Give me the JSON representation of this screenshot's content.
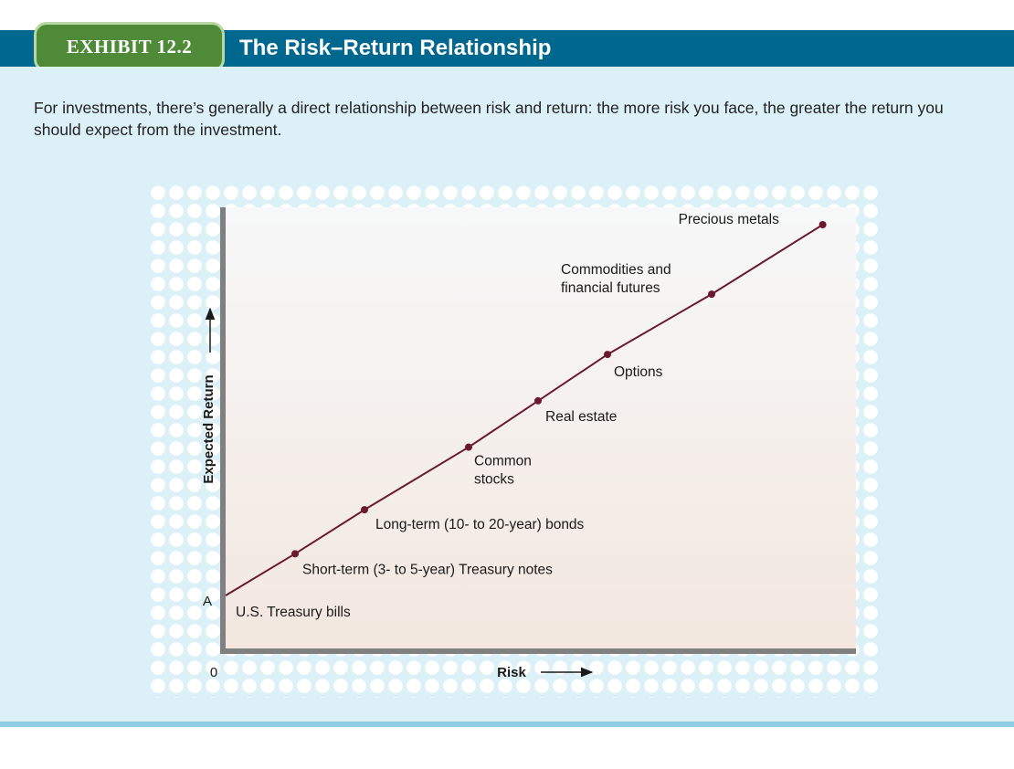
{
  "header": {
    "exhibit_label": "EXHIBIT 12.2",
    "title": "The Risk–Return Relationship"
  },
  "caption": "For investments, there’s generally a direct relationship between risk and return: the more risk you face, the greater the return you should expect from the investment.",
  "colors": {
    "header_bar": "#00678f",
    "exhibit_tab": "#4e8a37",
    "panel_background": "#dcf0f7",
    "line": "#6b1a2e",
    "axis": "#808080"
  },
  "chart_data": {
    "type": "line",
    "title": "",
    "xlabel": "Risk",
    "ylabel": "Expected Return",
    "x_tick_labels": [
      "0"
    ],
    "y_tick_labels": [
      "A"
    ],
    "xlim": [
      0,
      9
    ],
    "ylim": [
      0,
      9
    ],
    "series": [
      {
        "x": [
          0,
          1,
          2,
          3.5,
          4.5,
          5.5,
          7,
          8.6
        ],
        "y": [
          0,
          0.9,
          1.85,
          3.2,
          4.2,
          5.2,
          6.5,
          8.0
        ]
      }
    ],
    "point_labels": [
      "U.S. Treasury bills",
      "Short-term (3- to 5-year) Treasury notes",
      "Long-term (10- to 20-year) bonds",
      "Common stocks",
      "Real estate",
      "Options",
      "Commodities and financial futures",
      "Precious metals"
    ]
  }
}
